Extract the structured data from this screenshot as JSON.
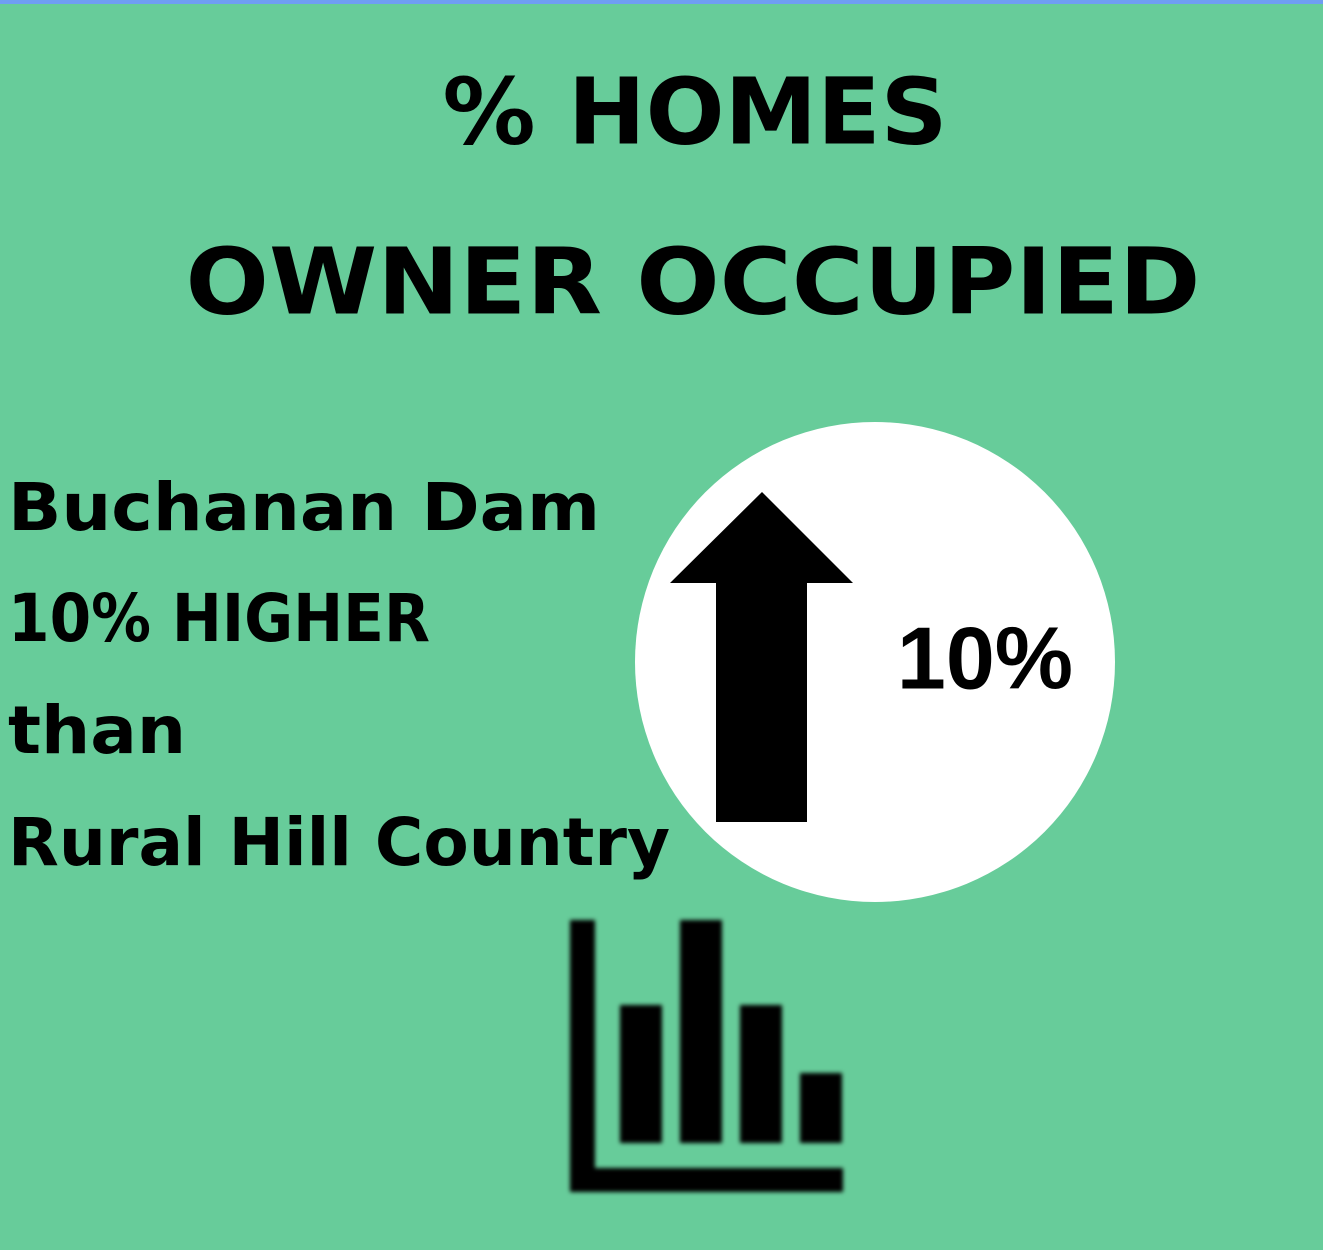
{
  "title": {
    "line1": "% HOMES",
    "line2": "OWNER OCCUPIED"
  },
  "comparison": {
    "lines": [
      "Buchanan Dam",
      "10% HIGHER",
      "than",
      "Rural Hill Country"
    ]
  },
  "badge": {
    "value": "10%"
  }
}
